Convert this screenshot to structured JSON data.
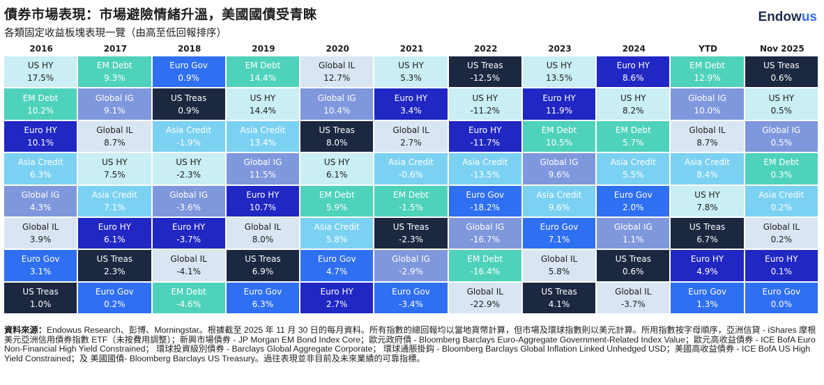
{
  "header": {
    "title": "債券市場表現：市場避險情緒升溫，美國國債受青睞",
    "subtitle": "各類固定收益板塊表現一覽（由高至低回報排序）",
    "logo_main": "Endow",
    "logo_accent": "us"
  },
  "colors": {
    "US HY": "#c9eef3",
    "EM Debt": "#4fd2bb",
    "Euro Gov": "#2f6ff2",
    "Global IL": "#d9e5f2",
    "US Treas": "#1c2740",
    "Euro HY": "#2127c2",
    "Global IG": "#7f97dc",
    "Asia Credit": "#7bd1f1"
  },
  "text_colors": {
    "US HY": "#1d1d1d",
    "EM Debt": "#ffffff",
    "Euro Gov": "#ffffff",
    "Global IL": "#1d1d1d",
    "US Treas": "#ffffff",
    "Euro HY": "#ffffff",
    "Global IG": "#ffffff",
    "Asia Credit": "#ffffff"
  },
  "chart_data": {
    "type": "table",
    "title": "各類固定收益板塊表現一覽（由高至低回報排序）",
    "columns": [
      "2016",
      "2017",
      "2018",
      "2019",
      "2020",
      "2021",
      "2022",
      "2023",
      "2024",
      "YTD",
      "Nov 2025"
    ],
    "series": [
      {
        "column": "2016",
        "cells": [
          {
            "name": "US HY",
            "value": "17.5%"
          },
          {
            "name": "EM Debt",
            "value": "10.2%"
          },
          {
            "name": "Euro HY",
            "value": "10.1%"
          },
          {
            "name": "Asia Credit",
            "value": "6.3%"
          },
          {
            "name": "Global IG",
            "value": "4.3%"
          },
          {
            "name": "Global IL",
            "value": "3.9%"
          },
          {
            "name": "Euro Gov",
            "value": "3.1%"
          },
          {
            "name": "US Treas",
            "value": "1.0%"
          }
        ]
      },
      {
        "column": "2017",
        "cells": [
          {
            "name": "EM Debt",
            "value": "9.3%"
          },
          {
            "name": "Global IG",
            "value": "9.1%"
          },
          {
            "name": "Global IL",
            "value": "8.7%"
          },
          {
            "name": "US HY",
            "value": "7.5%"
          },
          {
            "name": "Asia Credit",
            "value": "7.1%"
          },
          {
            "name": "Euro HY",
            "value": "6.1%"
          },
          {
            "name": "US Treas",
            "value": "2.3%"
          },
          {
            "name": "Euro Gov",
            "value": "0.2%"
          }
        ]
      },
      {
        "column": "2018",
        "cells": [
          {
            "name": "Euro Gov",
            "value": "0.9%"
          },
          {
            "name": "US Treas",
            "value": "0.9%"
          },
          {
            "name": "Asia Credit",
            "value": "-1.9%"
          },
          {
            "name": "US HY",
            "value": "-2.3%"
          },
          {
            "name": "Global IG",
            "value": "-3.6%"
          },
          {
            "name": "Euro HY",
            "value": "-3.7%"
          },
          {
            "name": "Global IL",
            "value": "-4.1%"
          },
          {
            "name": "EM Debt",
            "value": "-4.6%"
          }
        ]
      },
      {
        "column": "2019",
        "cells": [
          {
            "name": "EM Debt",
            "value": "14.4%"
          },
          {
            "name": "US HY",
            "value": "14.4%"
          },
          {
            "name": "Asia Credit",
            "value": "13.4%"
          },
          {
            "name": "Global IG",
            "value": "11.5%"
          },
          {
            "name": "Euro HY",
            "value": "10.7%"
          },
          {
            "name": "Global IL",
            "value": "8.0%"
          },
          {
            "name": "US Treas",
            "value": "6.9%"
          },
          {
            "name": "Euro Gov",
            "value": "6.3%"
          }
        ]
      },
      {
        "column": "2020",
        "cells": [
          {
            "name": "Global IL",
            "value": "12.7%"
          },
          {
            "name": "Global IG",
            "value": "10.4%"
          },
          {
            "name": "US Treas",
            "value": "8.0%"
          },
          {
            "name": "US HY",
            "value": "6.1%"
          },
          {
            "name": "EM Debt",
            "value": "5.9%"
          },
          {
            "name": "Asia Credit",
            "value": "5.8%"
          },
          {
            "name": "Euro Gov",
            "value": "4.7%"
          },
          {
            "name": "Euro HY",
            "value": "2.7%"
          }
        ]
      },
      {
        "column": "2021",
        "cells": [
          {
            "name": "US HY",
            "value": "5.3%"
          },
          {
            "name": "Euro HY",
            "value": "3.4%"
          },
          {
            "name": "Global IL",
            "value": "2.7%"
          },
          {
            "name": "Asia Credit",
            "value": "-0.6%"
          },
          {
            "name": "EM Debt",
            "value": "-1.5%"
          },
          {
            "name": "US Treas",
            "value": "-2.3%"
          },
          {
            "name": "Global IG",
            "value": "-2.9%"
          },
          {
            "name": "Euro Gov",
            "value": "-3.4%"
          }
        ]
      },
      {
        "column": "2022",
        "cells": [
          {
            "name": "US Treas",
            "value": "-12.5%"
          },
          {
            "name": "US HY",
            "value": "-11.2%"
          },
          {
            "name": "Euro HY",
            "value": "-11.7%"
          },
          {
            "name": "Asia Credit",
            "value": "-13.5%"
          },
          {
            "name": "Euro Gov",
            "value": "-18.2%"
          },
          {
            "name": "Global IG",
            "value": "-16.7%"
          },
          {
            "name": "EM Debt",
            "value": "-16.4%"
          },
          {
            "name": "Global IL",
            "value": "-22.9%"
          }
        ]
      },
      {
        "column": "2023",
        "cells": [
          {
            "name": "US HY",
            "value": "13.5%"
          },
          {
            "name": "Euro HY",
            "value": "11.9%"
          },
          {
            "name": "EM Debt",
            "value": "10.5%"
          },
          {
            "name": "Global IG",
            "value": "9.6%"
          },
          {
            "name": "Asia Credit",
            "value": "9.6%"
          },
          {
            "name": "Euro Gov",
            "value": "7.1%"
          },
          {
            "name": "Global IL",
            "value": "5.8%"
          },
          {
            "name": "US Treas",
            "value": "4.1%"
          }
        ]
      },
      {
        "column": "2024",
        "cells": [
          {
            "name": "Euro HY",
            "value": "8.6%"
          },
          {
            "name": "US HY",
            "value": "8.2%"
          },
          {
            "name": "EM Debt",
            "value": "5.7%"
          },
          {
            "name": "Asia Credit",
            "value": "5.5%"
          },
          {
            "name": "Euro Gov",
            "value": "2.0%"
          },
          {
            "name": "Global IG",
            "value": "1.1%"
          },
          {
            "name": "US Treas",
            "value": "0.6%"
          },
          {
            "name": "Global IL",
            "value": "-3.7%"
          }
        ]
      },
      {
        "column": "YTD",
        "cells": [
          {
            "name": "EM Debt",
            "value": "12.9%"
          },
          {
            "name": "Global IG",
            "value": "10.0%"
          },
          {
            "name": "Global IL",
            "value": "8.7%"
          },
          {
            "name": "Asia Credit",
            "value": "8.4%"
          },
          {
            "name": "US HY",
            "value": "7.8%"
          },
          {
            "name": "US Treas",
            "value": "6.7%"
          },
          {
            "name": "Euro HY",
            "value": "4.9%"
          },
          {
            "name": "Euro Gov",
            "value": "1.3%"
          }
        ]
      },
      {
        "column": "Nov 2025",
        "cells": [
          {
            "name": "US Treas",
            "value": "0.6%"
          },
          {
            "name": "US HY",
            "value": "0.5%"
          },
          {
            "name": "Global IG",
            "value": "0.5%"
          },
          {
            "name": "EM Debt",
            "value": "0.3%"
          },
          {
            "name": "Asia Credit",
            "value": "0.2%"
          },
          {
            "name": "Global IL",
            "value": "0.2%"
          },
          {
            "name": "Euro HY",
            "value": "0.1%"
          },
          {
            "name": "Euro Gov",
            "value": "0.0%"
          }
        ]
      }
    ]
  },
  "footnote": {
    "label": "資料來源：",
    "text": "Endowus Research、彭博、Morningstar。根據截至 2025 年 11 月 30 日的每月資料。所有指數的總回報均以當地貨幣計算，但市場及環球指數則以美元計算。所用指數按字母順序，亞洲信貸 - iShares 摩根美元亞洲信用債券指數 ETF（未按費用調整）；新興市場債券 - JP Morgan EM Bond Index Core；歐元政府債 - Bloomberg Barclays Euro-Aggregate Government-Related Index Value；歐元高收益債券 - ICE BofA Euro Non-Financial High Yield Constrained； 環球投資級別債券 - Barclays Global Aggregate Corporate； 環球通脹掛鈎 - Bloomberg Barclays Global Inflation Linked Unhedged USD；美國高收益債券 - ICE BofA US High Yield Constrained；及 美國國債- Bloomberg Barclays US Treasury。過往表現並非目前及未來業績的可靠指標。"
  }
}
